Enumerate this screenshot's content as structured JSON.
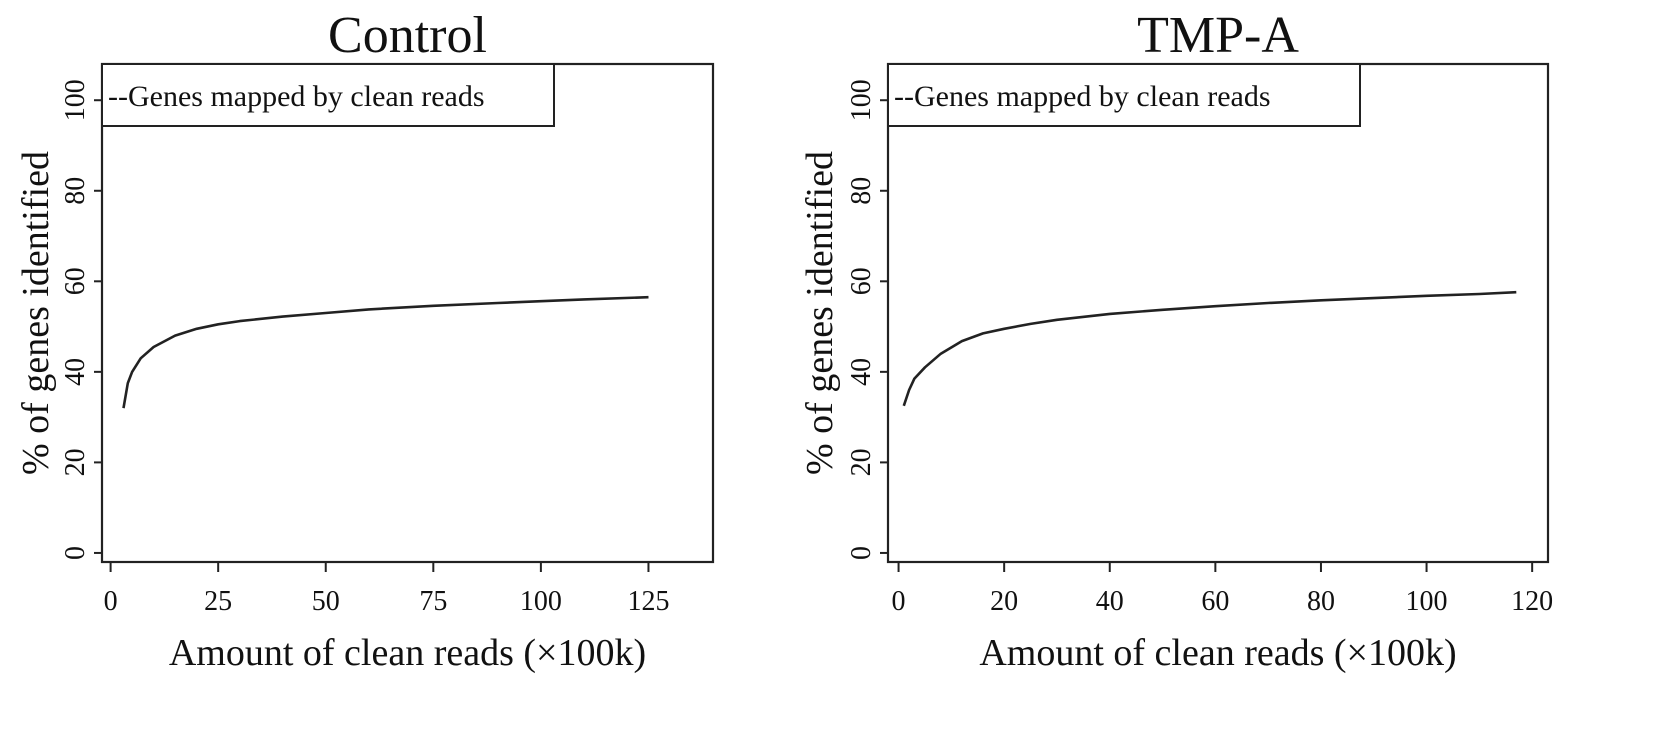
{
  "chart_data": [
    {
      "type": "line",
      "title": "Control",
      "xlabel": "Amount of clean reads (×100k)",
      "ylabel": "% of genes identified",
      "xlim": [
        -2,
        140
      ],
      "ylim": [
        -2,
        108
      ],
      "xticks": [
        0,
        25,
        50,
        75,
        100,
        125
      ],
      "yticks": [
        0,
        20,
        40,
        60,
        80,
        100
      ],
      "legend": {
        "position": "top-left",
        "entries": [
          "--Genes mapped by clean reads"
        ]
      },
      "grid": false,
      "series": [
        {
          "x": [
            3,
            4,
            5,
            7,
            10,
            15,
            20,
            25,
            30,
            40,
            50,
            60,
            75,
            90,
            100,
            110,
            125
          ],
          "y": [
            32,
            37.5,
            40,
            43,
            45.5,
            48,
            49.5,
            50.5,
            51.2,
            52.2,
            53,
            53.8,
            54.6,
            55.2,
            55.6,
            56,
            56.5
          ]
        }
      ]
    },
    {
      "type": "line",
      "title": "TMP-A",
      "xlabel": "Amount of clean reads (×100k)",
      "ylabel": "% of genes identified",
      "xlim": [
        -2,
        123
      ],
      "ylim": [
        -2,
        108
      ],
      "xticks": [
        0,
        20,
        40,
        60,
        80,
        100,
        120
      ],
      "yticks": [
        0,
        20,
        40,
        60,
        80,
        100
      ],
      "legend": {
        "position": "top-left",
        "entries": [
          "--Genes mapped by clean reads"
        ]
      },
      "grid": false,
      "series": [
        {
          "x": [
            1,
            2,
            3,
            5,
            8,
            12,
            16,
            20,
            25,
            30,
            40,
            50,
            60,
            70,
            80,
            90,
            100,
            110,
            117
          ],
          "y": [
            32.5,
            36,
            38.5,
            41,
            44,
            46.8,
            48.5,
            49.5,
            50.6,
            51.5,
            52.8,
            53.7,
            54.5,
            55.2,
            55.8,
            56.3,
            56.8,
            57.2,
            57.6
          ]
        }
      ]
    }
  ]
}
